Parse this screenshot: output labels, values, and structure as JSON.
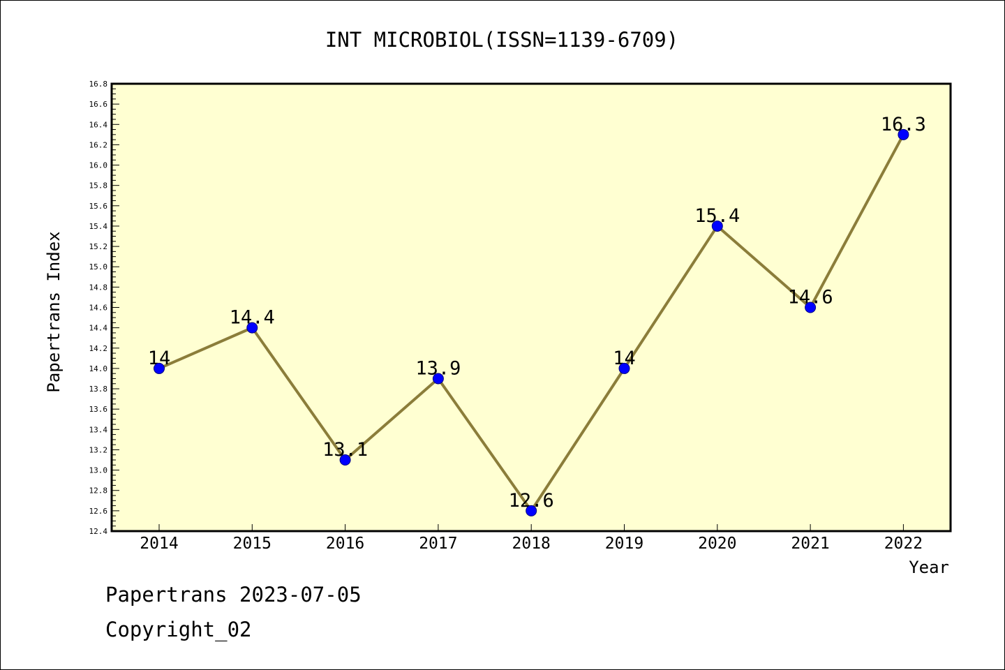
{
  "colors": {
    "background": "#ffffff",
    "plot_background": "#ffffd2",
    "line": "#8b7d3a",
    "marker_fill": "#0000ff",
    "marker_stroke": "#000080",
    "text": "#000000"
  },
  "footer": {
    "source_line": "Papertrans 2023-07-05",
    "copyright_line": "Copyright_02"
  },
  "chart_data": {
    "type": "line",
    "title": "INT MICROBIOL(ISSN=1139-6709)",
    "xlabel": "Year",
    "ylabel": "Papertrans Index",
    "categories": [
      "2014",
      "2015",
      "2016",
      "2017",
      "2018",
      "2019",
      "2020",
      "2021",
      "2022"
    ],
    "values": [
      14,
      14.4,
      13.1,
      13.9,
      12.6,
      14,
      15.4,
      14.6,
      16.3
    ],
    "data_labels": [
      "14",
      "14.4",
      "13.1",
      "13.9",
      "12.6",
      "14",
      "15.4",
      "14.6",
      "16.3"
    ],
    "ylim": [
      12.4,
      16.8
    ],
    "y_ticks": [
      "12.4",
      "12.6",
      "12.8",
      "13.0",
      "13.2",
      "13.4",
      "13.6",
      "13.8",
      "14.0",
      "14.2",
      "14.4",
      "14.6",
      "14.8",
      "15.0",
      "15.2",
      "15.4",
      "15.6",
      "15.8",
      "16.0",
      "16.2",
      "16.4",
      "16.6",
      "16.8"
    ],
    "grid": false,
    "legend": "none",
    "markers": "circle"
  }
}
